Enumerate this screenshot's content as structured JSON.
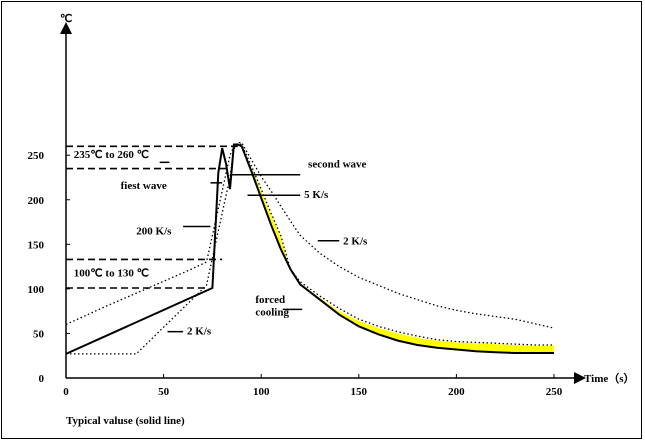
{
  "chart_data": {
    "type": "line",
    "title": "",
    "xlabel": "Time（s）",
    "ylabel": "℃",
    "xlim": [
      0,
      250
    ],
    "ylim": [
      0,
      270
    ],
    "x_ticks": [
      0,
      50,
      100,
      150,
      200,
      250
    ],
    "y_ticks": [
      0,
      50,
      100,
      150,
      200,
      250
    ],
    "grid": false,
    "caption": "Typical valuse (solid line)",
    "series": [
      {
        "style": "solid",
        "x": [
          0,
          75,
          78,
          80,
          82,
          84,
          86,
          88,
          90,
          95,
          100,
          105,
          110,
          115,
          120,
          130,
          140,
          150,
          160,
          170,
          180,
          190,
          200,
          210,
          220,
          230,
          240,
          250
        ],
        "y": [
          27,
          101,
          230,
          258,
          240,
          212,
          262,
          262,
          260,
          232,
          202,
          172,
          145,
          122,
          105,
          88,
          71,
          58,
          49,
          42,
          37,
          34,
          32,
          30,
          29,
          28,
          28,
          28
        ]
      },
      {
        "style": "dotted",
        "x": [
          0,
          36,
          72,
          76,
          80,
          84,
          86,
          88,
          90,
          95,
          100,
          105,
          110,
          115,
          120,
          130,
          140,
          150,
          160,
          170,
          180,
          190,
          200,
          210,
          220,
          230,
          240,
          250
        ],
        "y": [
          27,
          27,
          104,
          145,
          185,
          225,
          257,
          264,
          264,
          245,
          226,
          210,
          193,
          176,
          160,
          140,
          125,
          113,
          104,
          95,
          88,
          81,
          76,
          72,
          69,
          66,
          61,
          56
        ]
      },
      {
        "style": "dotted",
        "x": [
          0,
          20,
          40,
          60,
          72,
          78,
          84,
          86,
          88,
          90,
          95,
          100,
          105,
          110,
          115,
          120,
          130,
          140,
          150,
          160,
          170,
          180,
          190,
          200,
          210,
          220,
          230,
          240,
          250
        ],
        "y": [
          60,
          80,
          99,
          118,
          130,
          190,
          250,
          260,
          263,
          262,
          238,
          212,
          185,
          160,
          122,
          108,
          92,
          78,
          66,
          58,
          52,
          47,
          43,
          41,
          40,
          39,
          38,
          37,
          37
        ]
      },
      {
        "style": "yellow-band",
        "upper_x": [
          88,
          90,
          95,
          100,
          105,
          110,
          115,
          120,
          130,
          140,
          150,
          160,
          170,
          180,
          190,
          200,
          210,
          220,
          230,
          240,
          250
        ],
        "upper_y": [
          262,
          260,
          236,
          210,
          183,
          158,
          121,
          106,
          90,
          75,
          64,
          56,
          50,
          45,
          42,
          40,
          39,
          38,
          37,
          36,
          36
        ],
        "lower_x": [
          88,
          90,
          95,
          100,
          105,
          110,
          115,
          120,
          130,
          140,
          150,
          160,
          170,
          180,
          190,
          200,
          210,
          220,
          230,
          240,
          250
        ],
        "lower_y": [
          262,
          260,
          232,
          202,
          172,
          145,
          122,
          105,
          88,
          71,
          58,
          49,
          42,
          37,
          34,
          32,
          30,
          29,
          28,
          28,
          28
        ]
      }
    ],
    "reference_levels": [
      {
        "y": 260,
        "label": ""
      },
      {
        "y": 235,
        "label": "235℃ to 260 ℃"
      },
      {
        "y": 133,
        "label": ""
      },
      {
        "y": 101,
        "label": "100℃ to 130 ℃"
      }
    ],
    "annotations": [
      {
        "text": "235℃ to 260 ℃",
        "x": 4,
        "y": 247
      },
      {
        "text": "fiest wave",
        "x": 28,
        "y": 212
      },
      {
        "text": "second wave",
        "x": 124,
        "y": 236
      },
      {
        "text": "5 K/s",
        "x": 122,
        "y": 202
      },
      {
        "text": "200 K/s",
        "x": 36,
        "y": 161
      },
      {
        "text": "2 K/s",
        "x": 142,
        "y": 150
      },
      {
        "text": "100℃ to 130 ℃",
        "x": 4,
        "y": 114
      },
      {
        "text": "forced",
        "x": 97,
        "y": 84
      },
      {
        "text": "cooling",
        "x": 97,
        "y": 70
      },
      {
        "text": "2 K/s",
        "x": 62,
        "y": 49
      }
    ]
  }
}
